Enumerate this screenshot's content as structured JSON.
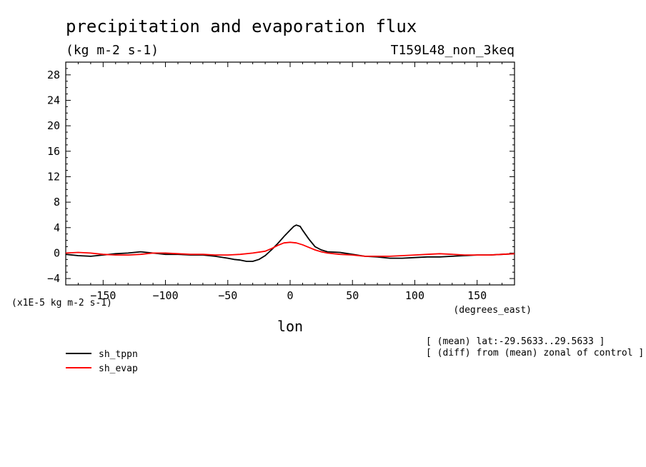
{
  "chart_data": {
    "type": "line",
    "title": "precipitation and evaporation flux",
    "units_label": "(kg m-2 s-1)",
    "run_label": "T159L48_non_3keq",
    "scale_label": "(x1E-5 kg m-2 s-1)",
    "xlabel": "lon",
    "x_units_label": "(degrees_east)",
    "xlim": [
      -180,
      180
    ],
    "ylim": [
      -5,
      30
    ],
    "xticks": [
      -150,
      -100,
      -50,
      0,
      50,
      100,
      150
    ],
    "yticks": [
      -4,
      0,
      4,
      8,
      12,
      16,
      20,
      24,
      28
    ],
    "notes": [
      "[ (mean) lat:-29.5633..29.5633 ]",
      "[ (diff) from (mean) zonal of control ]"
    ],
    "legend_position": "bottom-left",
    "series": [
      {
        "name": "sh_tppn",
        "color": "#000000",
        "x": [
          -180,
          -170,
          -160,
          -150,
          -140,
          -130,
          -120,
          -110,
          -100,
          -90,
          -80,
          -70,
          -60,
          -50,
          -45,
          -40,
          -35,
          -30,
          -25,
          -20,
          -15,
          -10,
          -5,
          0,
          3,
          5,
          8,
          10,
          15,
          20,
          25,
          30,
          40,
          50,
          60,
          70,
          80,
          90,
          100,
          110,
          120,
          130,
          140,
          150,
          160,
          170,
          180
        ],
        "y": [
          -0.2,
          -0.4,
          -0.5,
          -0.3,
          -0.1,
          0.0,
          0.2,
          0.0,
          -0.2,
          -0.2,
          -0.3,
          -0.3,
          -0.5,
          -0.8,
          -1.0,
          -1.1,
          -1.3,
          -1.3,
          -1.0,
          -0.4,
          0.5,
          1.5,
          2.6,
          3.6,
          4.2,
          4.4,
          4.2,
          3.6,
          2.2,
          1.0,
          0.5,
          0.2,
          0.1,
          -0.2,
          -0.5,
          -0.6,
          -0.8,
          -0.8,
          -0.7,
          -0.6,
          -0.6,
          -0.5,
          -0.4,
          -0.3,
          -0.3,
          -0.2,
          -0.1
        ]
      },
      {
        "name": "sh_evap",
        "color": "#ff0000",
        "x": [
          -180,
          -170,
          -160,
          -150,
          -140,
          -130,
          -120,
          -110,
          -100,
          -90,
          -80,
          -70,
          -60,
          -50,
          -40,
          -30,
          -20,
          -15,
          -10,
          -5,
          0,
          5,
          10,
          15,
          20,
          25,
          30,
          40,
          50,
          60,
          70,
          80,
          90,
          100,
          110,
          120,
          130,
          140,
          150,
          160,
          170,
          180
        ],
        "y": [
          0.0,
          0.1,
          0.0,
          -0.2,
          -0.3,
          -0.3,
          -0.2,
          0.0,
          0.0,
          -0.1,
          -0.2,
          -0.2,
          -0.3,
          -0.3,
          -0.2,
          0.0,
          0.3,
          0.7,
          1.2,
          1.6,
          1.7,
          1.6,
          1.3,
          0.9,
          0.5,
          0.2,
          0.0,
          -0.2,
          -0.3,
          -0.5,
          -0.5,
          -0.5,
          -0.4,
          -0.3,
          -0.2,
          -0.1,
          -0.2,
          -0.3,
          -0.3,
          -0.3,
          -0.2,
          -0.1
        ]
      }
    ]
  }
}
